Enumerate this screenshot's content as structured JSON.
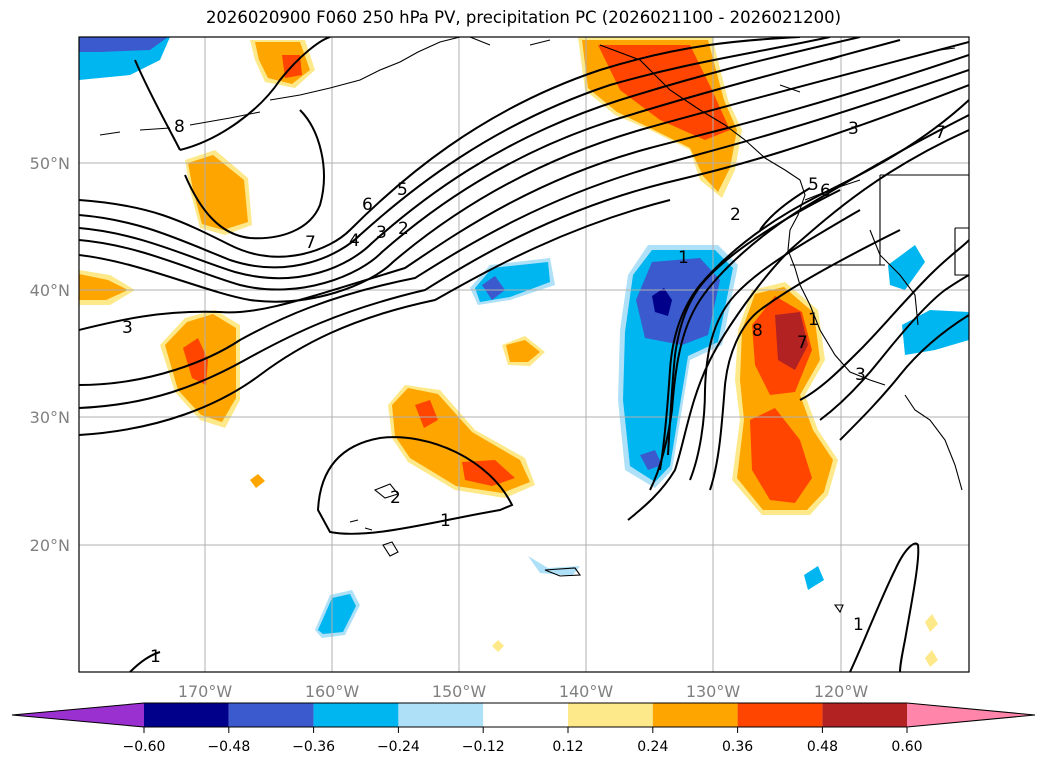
{
  "title": "2026020900 F060 250 hPa PV, precipitation PC (2026021100 - 2026021200)",
  "latitude_labels": [
    "50°N",
    "40°N",
    "30°N",
    "20°N"
  ],
  "longitude_labels": [
    "170°W",
    "160°W",
    "150°W",
    "140°W",
    "130°W",
    "120°W"
  ],
  "colorbar": {
    "ticks": [
      "−0.60",
      "−0.48",
      "−0.36",
      "−0.24",
      "−0.12",
      "0.12",
      "0.24",
      "0.36",
      "0.48",
      "0.60"
    ],
    "colors": [
      "#9b30d0",
      "#00008b",
      "#3a5acd",
      "#00b6f0",
      "#aee0f8",
      "#ffffff",
      "#fde98a",
      "#ffa500",
      "#ff4500",
      "#b22222",
      "#ff85aa"
    ]
  },
  "contour_labels": [
    "8",
    "7",
    "6",
    "5",
    "4",
    "3",
    "2",
    "3",
    "2",
    "1",
    "2",
    "1",
    "1",
    "8",
    "7",
    "3",
    "6",
    "5",
    "3",
    "7",
    "1",
    "1"
  ]
}
